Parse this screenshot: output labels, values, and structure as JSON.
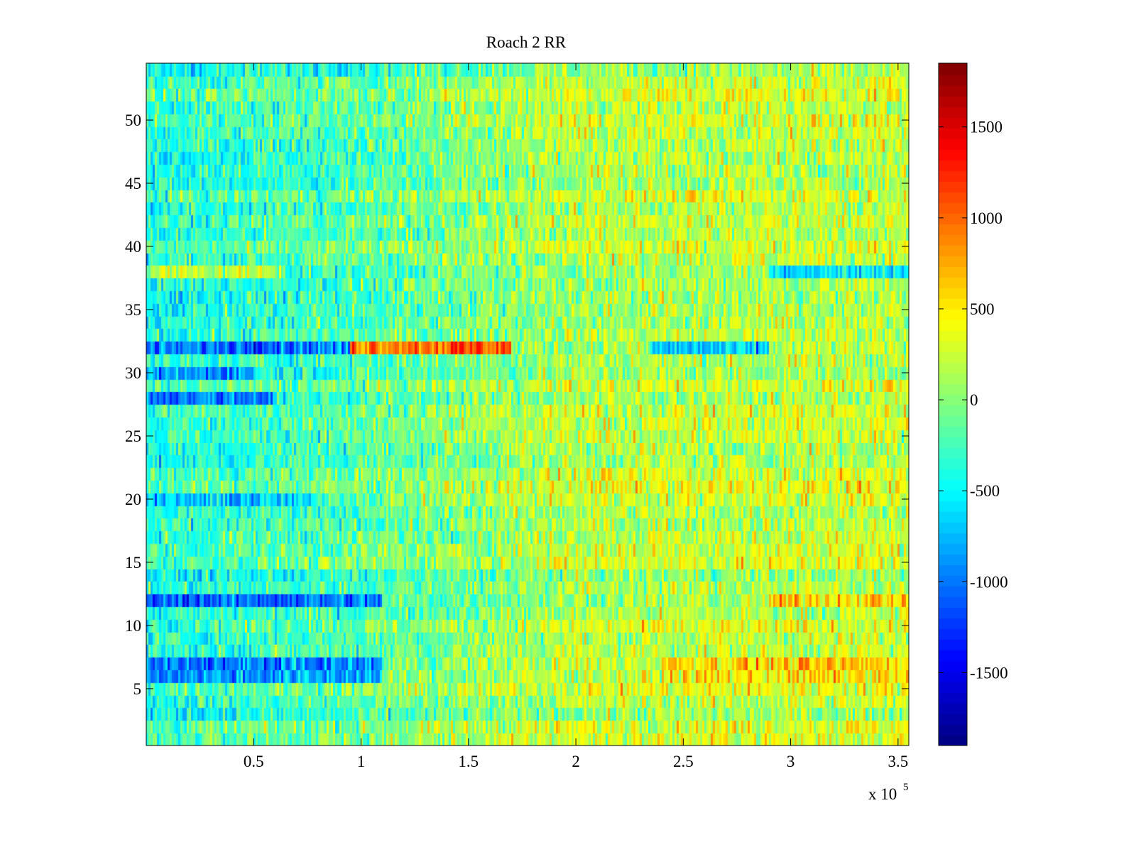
{
  "chart_data": {
    "type": "heatmap",
    "title": "Roach 2 RR",
    "xlabel": "",
    "ylabel": "",
    "x_multiplier_label": "x 10",
    "x_multiplier_exponent": "5",
    "xlim": [
      0,
      3.55
    ],
    "ylim": [
      0.5,
      54.5
    ],
    "rows": 54,
    "cols": 355,
    "colormap": "jet",
    "clim": [
      -1900,
      1850
    ],
    "x_ticks": [
      0.5,
      1,
      1.5,
      2,
      2.5,
      3,
      3.5
    ],
    "x_tick_labels": [
      "0.5",
      "1",
      "1.5",
      "2",
      "2.5",
      "3",
      "3.5"
    ],
    "y_ticks": [
      5,
      10,
      15,
      20,
      25,
      30,
      35,
      40,
      45,
      50
    ],
    "y_tick_labels": [
      "5",
      "10",
      "15",
      "20",
      "25",
      "30",
      "35",
      "40",
      "45",
      "50"
    ],
    "colorbar_ticks": [
      1500,
      1000,
      500,
      0,
      -500,
      -1000,
      -1500
    ],
    "colorbar_tick_labels": [
      "1500",
      "1000",
      "500",
      "0",
      "-500",
      "-1000",
      "-1500"
    ],
    "row_bias_profile": [
      {
        "row": 32,
        "segments": [
          [
            0,
            0.95,
            -750
          ],
          [
            0.95,
            1.7,
            1150
          ],
          [
            2.35,
            2.9,
            -750
          ]
        ]
      },
      {
        "row": 12,
        "segments": [
          [
            0,
            1.1,
            -800
          ],
          [
            2.9,
            3.55,
            600
          ]
        ]
      },
      {
        "row": 7,
        "segments": [
          [
            0,
            1.1,
            -900
          ],
          [
            2.4,
            3.55,
            450
          ]
        ]
      },
      {
        "row": 6,
        "segments": [
          [
            0,
            1.1,
            -750
          ],
          [
            2.4,
            3.55,
            350
          ]
        ]
      },
      {
        "row": 38,
        "segments": [
          [
            0,
            0.65,
            450
          ],
          [
            2.9,
            3.55,
            -550
          ]
        ]
      },
      {
        "row": 28,
        "segments": [
          [
            0,
            0.6,
            -700
          ]
        ]
      },
      {
        "row": 30,
        "segments": [
          [
            0,
            0.5,
            -600
          ]
        ]
      },
      {
        "row": 20,
        "segments": [
          [
            0,
            0.8,
            -650
          ]
        ]
      }
    ],
    "column_trend": [
      [
        0,
        -350
      ],
      [
        1.0,
        -150
      ],
      [
        2.0,
        200
      ],
      [
        3.55,
        250
      ]
    ]
  }
}
